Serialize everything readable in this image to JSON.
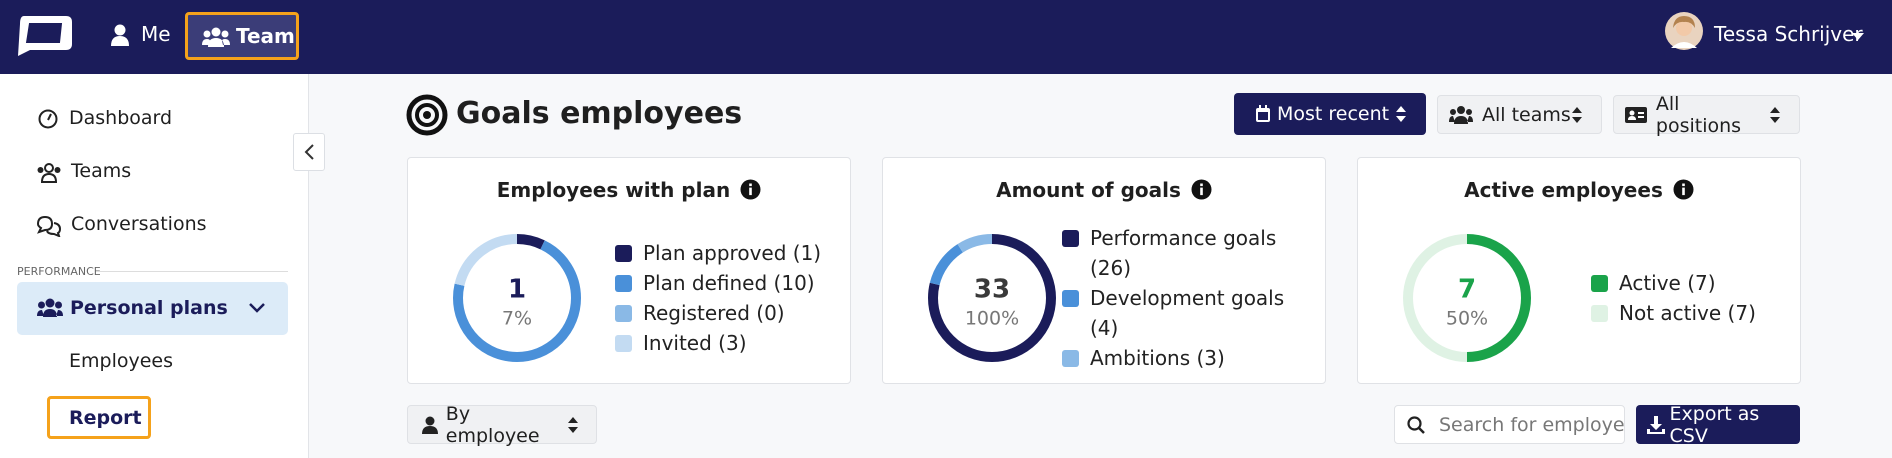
{
  "nav": {
    "items": [
      "Me",
      "Team"
    ],
    "user": "Tessa Schrijver"
  },
  "sidebar": {
    "items": [
      "Dashboard",
      "Teams",
      "Conversations"
    ],
    "section": "PERFORMANCE",
    "group": "Personal plans",
    "subitems": [
      "Employees",
      "Report"
    ]
  },
  "page": {
    "title": "Goals employees",
    "filters": [
      "Most recent",
      "All teams",
      "All positions"
    ]
  },
  "chart_data": [
    {
      "type": "donut",
      "title": "Employees with plan",
      "center_value": 1,
      "center_label": "7%",
      "center_color": "#1b1c5a",
      "categories": [
        "Plan approved (1)",
        "Plan defined (10)",
        "Registered (0)",
        "Invited (3)"
      ],
      "values": [
        1,
        10,
        0,
        3
      ],
      "colors": [
        "#1b1c5a",
        "#4a90d9",
        "#8ab9e6",
        "#c3dbf2"
      ]
    },
    {
      "type": "donut",
      "title": "Amount of goals",
      "center_value": 33,
      "center_label": "100%",
      "center_color": "#3a3a3a",
      "categories": [
        "Performance goals (26)",
        "Development goals (4)",
        "Ambitions (3)"
      ],
      "values": [
        26,
        4,
        3
      ],
      "colors": [
        "#1b1c5a",
        "#4a90d9",
        "#8ab9e6"
      ]
    },
    {
      "type": "donut",
      "title": "Active employees",
      "center_value": 7,
      "center_label": "50%",
      "center_color": "#1aa34a",
      "categories": [
        "Active (7)",
        "Not active (7)"
      ],
      "values": [
        7,
        7
      ],
      "colors": [
        "#1aa34a",
        "#dff2e4"
      ]
    }
  ],
  "toolbar": {
    "group_by": "By employee",
    "search_placeholder": "Search for employee",
    "export": "Export as CSV"
  }
}
